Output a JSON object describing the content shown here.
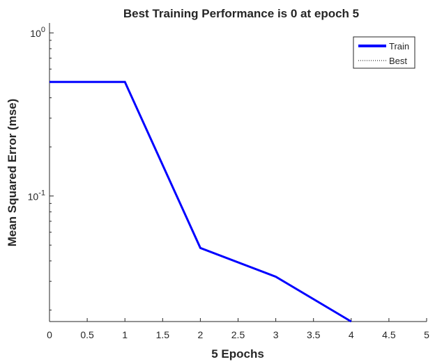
{
  "chart_data": {
    "type": "line",
    "title": "Best Training Performance is 0 at epoch 5",
    "xlabel": "5 Epochs",
    "ylabel": "Mean Squared Error  (mse)",
    "xlim": [
      0,
      5
    ],
    "ylim": [
      0.017,
      1.15
    ],
    "yscale": "log",
    "grid": false,
    "legend_position": "top-right",
    "x_ticks": [
      "0",
      "0.5",
      "1",
      "1.5",
      "2",
      "2.5",
      "3",
      "3.5",
      "4",
      "4.5",
      "5"
    ],
    "x_tick_values": [
      0,
      0.5,
      1,
      1.5,
      2,
      2.5,
      3,
      3.5,
      4,
      4.5,
      5
    ],
    "y_ticks": [
      {
        "value": 1,
        "base": "10",
        "exp": "0"
      },
      {
        "value": 0.1,
        "base": "10",
        "exp": "-1"
      }
    ],
    "series": [
      {
        "name": "Train",
        "color": "#0000ff",
        "style": "solid",
        "x": [
          0,
          1,
          2,
          3,
          4
        ],
        "y": [
          0.5,
          0.5,
          0.048,
          0.032,
          0.017
        ]
      },
      {
        "name": "Best",
        "color": "#000000",
        "style": "dotted",
        "x": [],
        "y": []
      }
    ]
  }
}
